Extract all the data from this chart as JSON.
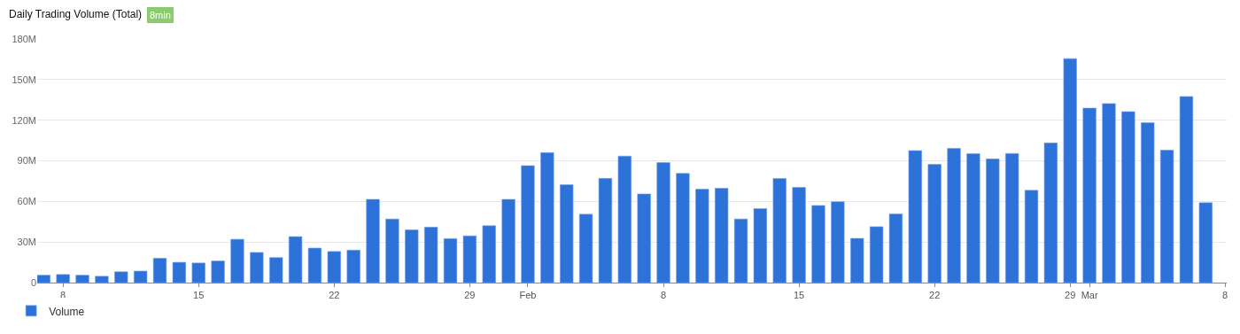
{
  "chart_data": {
    "type": "bar",
    "title": "Daily Trading Volume (Total)",
    "annotations": [
      "8min"
    ],
    "x": [
      "--01-07",
      "--01-08",
      "--01-09",
      "--01-10",
      "--01-11",
      "--01-12",
      "--01-13",
      "--01-14",
      "--01-15",
      "--01-16",
      "--01-17",
      "--01-18",
      "--01-19",
      "--01-20",
      "--01-21",
      "--01-22",
      "--01-23",
      "--01-24",
      "--01-25",
      "--01-26",
      "--01-27",
      "--01-28",
      "--01-29",
      "--01-30",
      "--01-31",
      "--02-01",
      "--02-02",
      "--02-03",
      "--02-04",
      "--02-05",
      "--02-06",
      "--02-07",
      "--02-08",
      "--02-09",
      "--02-10",
      "--02-11",
      "--02-12",
      "--02-13",
      "--02-14",
      "--02-15",
      "--02-16",
      "--02-17",
      "--02-18",
      "--02-19",
      "--02-20",
      "--02-21",
      "--02-22",
      "--02-23",
      "--02-24",
      "--02-25",
      "--02-26",
      "--02-27",
      "--02-28",
      "--02-29",
      "--03-01",
      "--03-02",
      "--03-03",
      "--03-04",
      "--03-05",
      "--03-06",
      "--03-07"
    ],
    "series": [
      {
        "name": "Volume",
        "color": "#2c72d9",
        "values": [
          5.5,
          6,
          5.5,
          4.7,
          8,
          8.5,
          18,
          15,
          14.5,
          16,
          32,
          22.3,
          18.5,
          34,
          25.5,
          23,
          24,
          61.5,
          47,
          39,
          41,
          32.5,
          34.5,
          42,
          61.5,
          86.4,
          96,
          72.3,
          50.5,
          77,
          93.5,
          65.5,
          88.7,
          80.7,
          69,
          69.7,
          47,
          54.6,
          76.9,
          70.4,
          57,
          59.8,
          32.7,
          41.3,
          50.8,
          97.5,
          87.4,
          99.2,
          95.2,
          91.4,
          95.4,
          68.2,
          103.2,
          165.5,
          128.9,
          132.3,
          126.3,
          118.1,
          97.9,
          137.5,
          59
        ]
      }
    ],
    "xlim": [
      "--01-06T16:00",
      "--03-08T02:00"
    ],
    "xticks": [
      {
        "value": "--01-08",
        "label": "8"
      },
      {
        "value": "--01-15",
        "label": "15"
      },
      {
        "value": "--01-22",
        "label": "22"
      },
      {
        "value": "--01-29",
        "label": "29"
      },
      {
        "value": "--02-01",
        "label": "Feb"
      },
      {
        "value": "--02-08",
        "label": "8"
      },
      {
        "value": "--02-15",
        "label": "15"
      },
      {
        "value": "--02-22",
        "label": "22"
      },
      {
        "value": "--02-29",
        "label": "29"
      },
      {
        "value": "--03-01",
        "label": "Mar"
      },
      {
        "value": "--03-08",
        "label": "8"
      }
    ],
    "ylim": [
      0,
      180
    ],
    "yticks": [
      0,
      {
        "value": 30,
        "label": "30M"
      },
      {
        "value": 60,
        "label": "60M"
      },
      {
        "value": 90,
        "label": "90M"
      },
      {
        "value": 120,
        "label": "120M"
      },
      {
        "value": 150,
        "label": "150M"
      },
      {
        "value": 180,
        "label": "180M"
      }
    ],
    "grid": "y",
    "legend": "bottom left"
  }
}
